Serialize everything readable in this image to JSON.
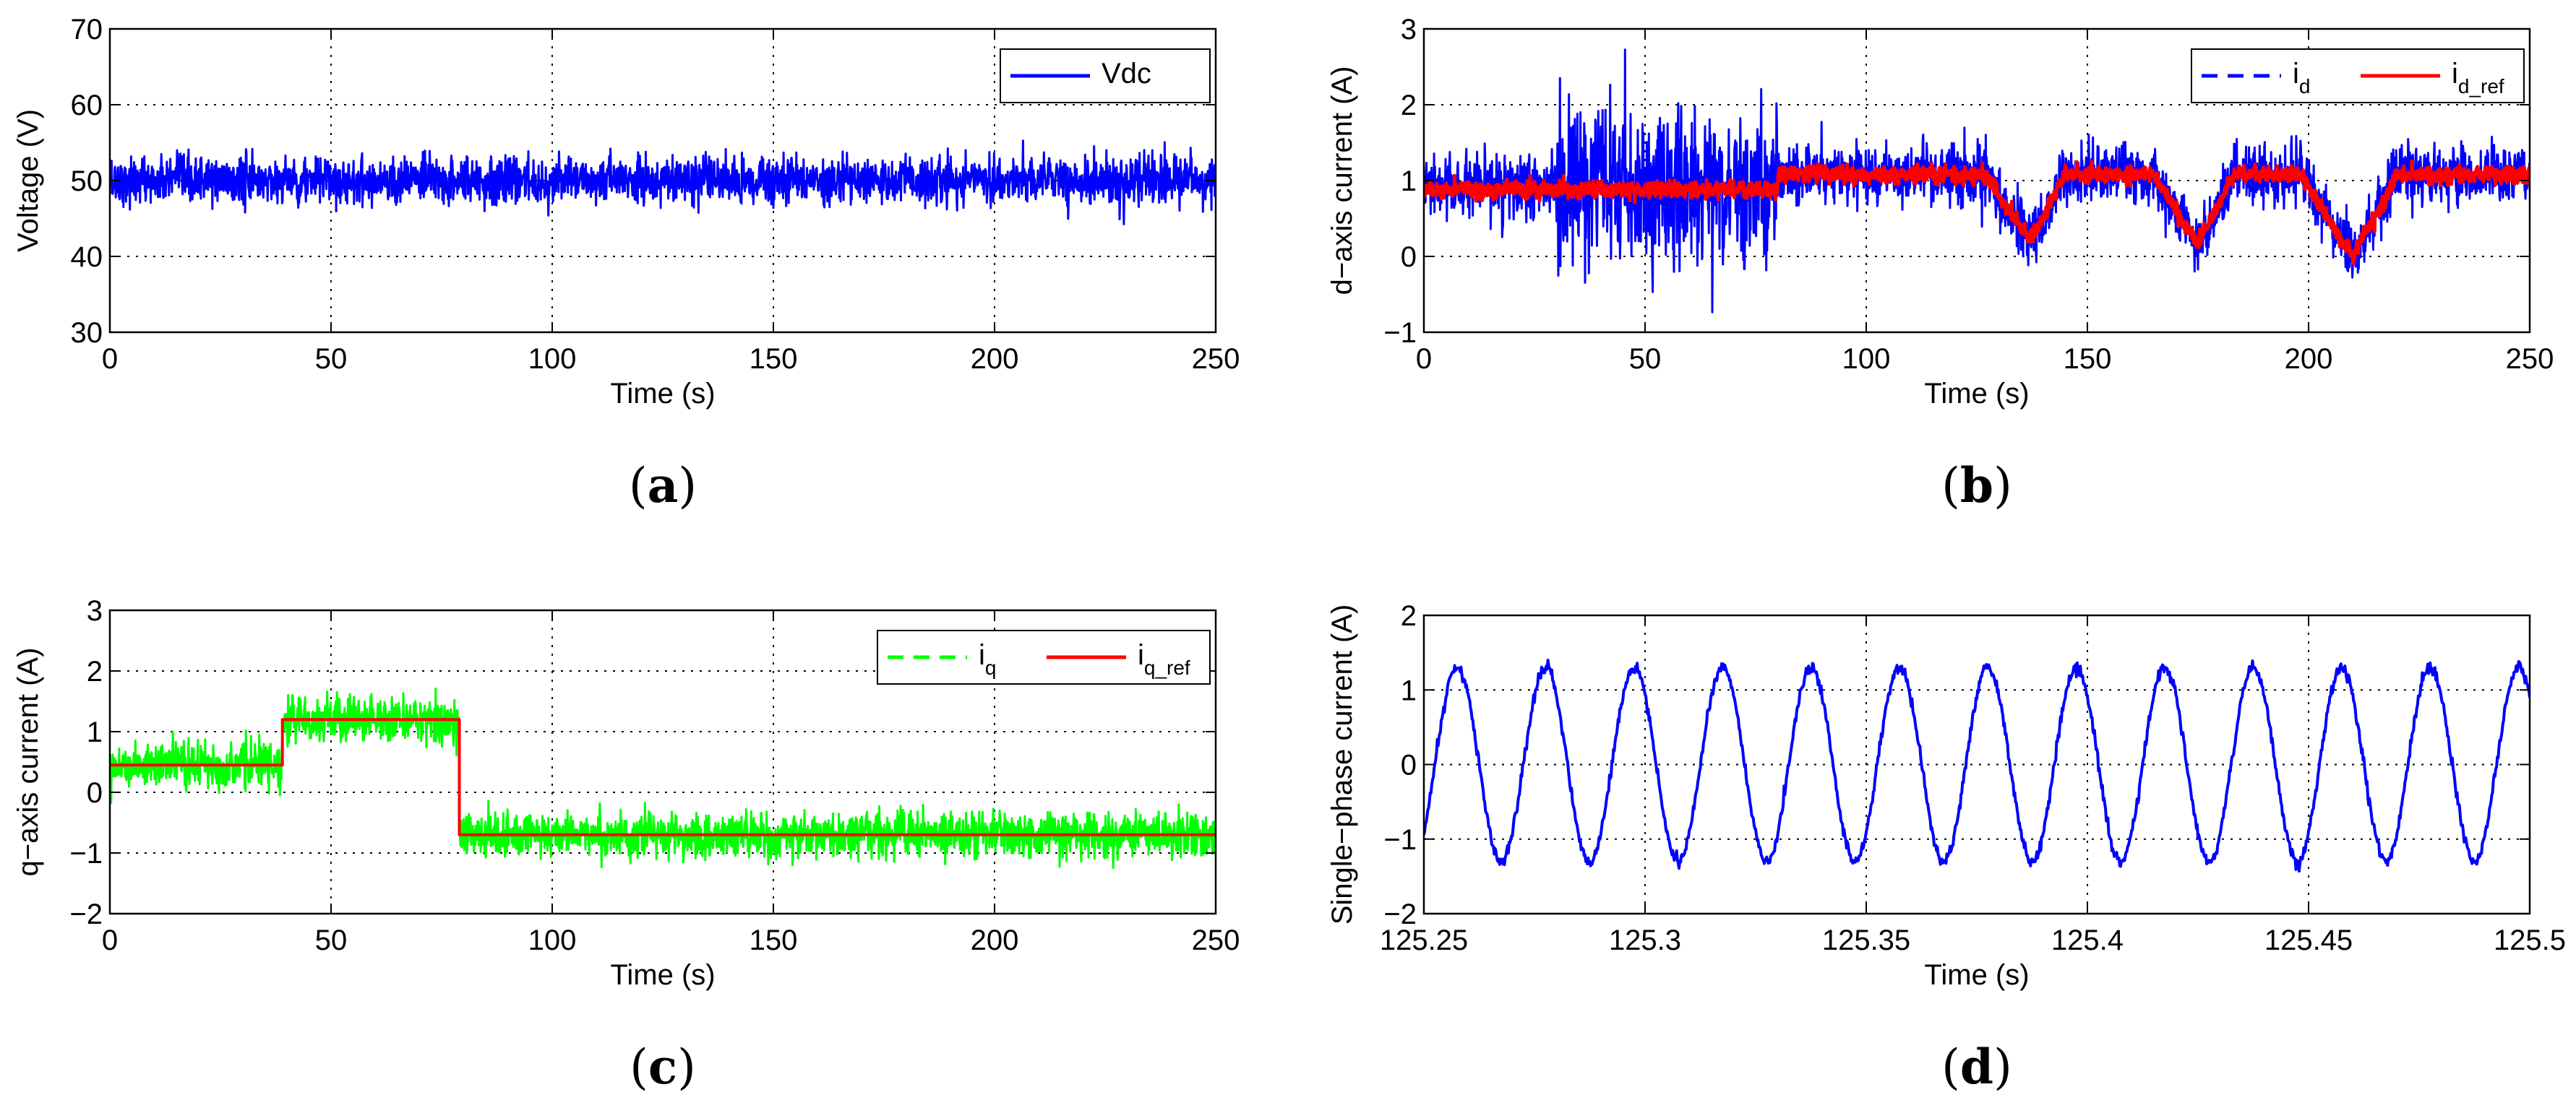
{
  "chart_data": [
    {
      "id": "a",
      "type": "line",
      "caption": "a",
      "xlabel": "Time (s)",
      "ylabel": "Voltage (V)",
      "xlim": [
        0,
        250
      ],
      "ylim": [
        30,
        70
      ],
      "xticks": [
        0,
        50,
        100,
        150,
        200,
        250
      ],
      "xtick_labels": [
        "0",
        "50",
        "100",
        "150",
        "200",
        "250"
      ],
      "yticks": [
        30,
        40,
        50,
        60,
        70
      ],
      "ytick_labels": [
        "30",
        "40",
        "50",
        "60",
        "70"
      ],
      "grid": true,
      "legend": {
        "position": "top-right",
        "entries": [
          {
            "name": "Vdc",
            "sub": ""
          }
        ]
      },
      "series": [
        {
          "name": "Vdc",
          "color": "#0000ff",
          "style": "solid",
          "kind": "noise",
          "noise": 1.7,
          "segments": [
            {
              "x0": 0,
              "x1": 250,
              "y0": 50,
              "y1": 50
            }
          ]
        }
      ]
    },
    {
      "id": "b",
      "type": "line",
      "caption": "b",
      "xlabel": "Time (s)",
      "ylabel": "d−axis current (A)",
      "xlim": [
        0,
        250
      ],
      "ylim": [
        -1,
        3
      ],
      "xticks": [
        0,
        50,
        100,
        150,
        200,
        250
      ],
      "xtick_labels": [
        "0",
        "50",
        "100",
        "150",
        "200",
        "250"
      ],
      "yticks": [
        -1,
        0,
        1,
        2,
        3
      ],
      "ytick_labels": [
        "−1",
        "0",
        "1",
        "2",
        "3"
      ],
      "grid": true,
      "legend": {
        "position": "top-right",
        "entries": [
          {
            "name": "i",
            "sub": "d"
          },
          {
            "name": "i",
            "sub": "d_ref"
          }
        ]
      },
      "series": [
        {
          "name": "i_d",
          "color": "#0000ff",
          "style": "dashed",
          "kind": "noise",
          "noise": 0.22,
          "bursts": [
            {
              "x0": 30,
              "x1": 80,
              "amp": 0.55
            }
          ],
          "path": [
            [
              0,
              0.9
            ],
            [
              80,
              0.9
            ],
            [
              80,
              1.08
            ],
            [
              127,
              1.08
            ],
            [
              137,
              0.15
            ],
            [
              145,
              1.08
            ],
            [
              165,
              1.08
            ],
            [
              175,
              0.12
            ],
            [
              183,
              1.08
            ],
            [
              198,
              1.08
            ],
            [
              210,
              0.0
            ],
            [
              220,
              1.08
            ],
            [
              250,
              1.08
            ]
          ]
        },
        {
          "name": "i_d_ref",
          "color": "#ff0000",
          "style": "solid",
          "kind": "noise",
          "noise": 0.06,
          "path": [
            [
              0,
              0.88
            ],
            [
              80,
              0.88
            ],
            [
              80,
              1.08
            ],
            [
              127,
              1.08
            ],
            [
              137,
              0.2
            ],
            [
              145,
              1.08
            ],
            [
              165,
              1.08
            ],
            [
              175,
              0.15
            ],
            [
              183,
              1.08
            ],
            [
              198,
              1.08
            ],
            [
              210,
              0.0
            ],
            [
              220,
              1.08
            ],
            [
              250,
              1.08
            ]
          ]
        }
      ]
    },
    {
      "id": "c",
      "type": "line",
      "caption": "c",
      "xlabel": "Time (s)",
      "ylabel": "q−axis current (A)",
      "xlim": [
        0,
        250
      ],
      "ylim": [
        -2,
        3
      ],
      "xticks": [
        0,
        50,
        100,
        150,
        200,
        250
      ],
      "xtick_labels": [
        "0",
        "50",
        "100",
        "150",
        "200",
        "250"
      ],
      "yticks": [
        -2,
        -1,
        0,
        1,
        2,
        3
      ],
      "ytick_labels": [
        "−2",
        "−1",
        "0",
        "1",
        "2",
        "3"
      ],
      "grid": true,
      "legend": {
        "position": "top-right",
        "entries": [
          {
            "name": "i",
            "sub": "q"
          },
          {
            "name": "i",
            "sub": "q_ref"
          }
        ]
      },
      "series": [
        {
          "name": "i_q",
          "color": "#00ff00",
          "style": "dashed",
          "kind": "noise",
          "noise": 0.2,
          "path": [
            [
              0,
              0.45
            ],
            [
              39,
              0.45
            ],
            [
              39,
              1.2
            ],
            [
              79,
              1.2
            ],
            [
              79,
              -0.7
            ],
            [
              250,
              -0.7
            ]
          ]
        },
        {
          "name": "i_q_ref",
          "color": "#ff0000",
          "style": "solid",
          "kind": "step",
          "path": [
            [
              0,
              0.45
            ],
            [
              39,
              0.45
            ],
            [
              39,
              1.2
            ],
            [
              79,
              1.2
            ],
            [
              79,
              -0.7
            ],
            [
              250,
              -0.7
            ]
          ]
        }
      ]
    },
    {
      "id": "d",
      "type": "line",
      "caption": "d",
      "xlabel": "Time (s)",
      "ylabel": "Single−phase current (A)",
      "xlim": [
        125.25,
        125.5
      ],
      "ylim": [
        -2,
        2
      ],
      "xticks": [
        125.25,
        125.3,
        125.35,
        125.4,
        125.45,
        125.5
      ],
      "xtick_labels": [
        "125.25",
        "125.3",
        "125.35",
        "125.4",
        "125.45",
        "125.5"
      ],
      "yticks": [
        -2,
        -1,
        0,
        1,
        2
      ],
      "ytick_labels": [
        "−2",
        "−1",
        "0",
        "1",
        "2"
      ],
      "grid": true,
      "legend": null,
      "series": [
        {
          "name": "current",
          "color": "#0000ff",
          "style": "solid",
          "kind": "sine",
          "amplitude": 1.3,
          "frequency_hz": 50,
          "phase_start": 125.2525,
          "noise": 0.04
        }
      ]
    }
  ]
}
